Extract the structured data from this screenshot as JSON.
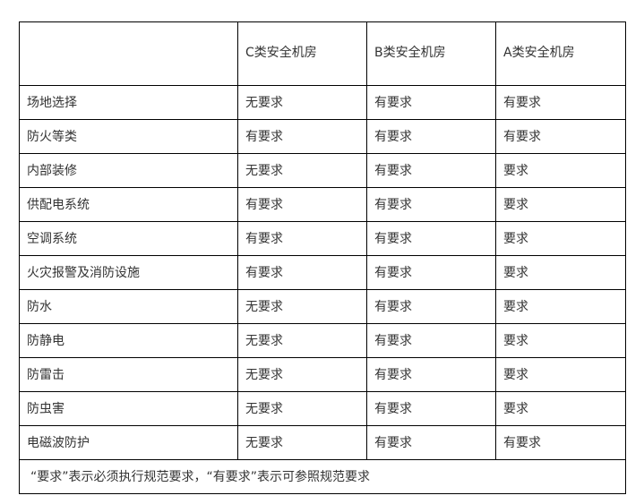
{
  "header": [
    "",
    "C类安全机房",
    "B类安全机房",
    "A类安全机房"
  ],
  "rows": [
    [
      "场地选择",
      "无要求",
      "有要求",
      "有要求"
    ],
    [
      "防火等类",
      "有要求",
      "有要求",
      "有要求"
    ],
    [
      "内部装修",
      "无要求",
      "有要求",
      "要求"
    ],
    [
      "供配电系统",
      "有要求",
      "有要求",
      "要求"
    ],
    [
      "空调系统",
      "有要求",
      "有要求",
      "要求"
    ],
    [
      "火灾报警及消防设施",
      "有要求",
      "有要求",
      "要求"
    ],
    [
      "防水",
      "无要求",
      "有要求",
      "要求"
    ],
    [
      "防静电",
      "无要求",
      "有要求",
      "要求"
    ],
    [
      "防雷击",
      "无要求",
      "有要求",
      "要求"
    ],
    [
      "防虫害",
      "无要求",
      "有要求",
      "要求"
    ],
    [
      "电磁波防护",
      "无要求",
      "有要求",
      "有要求"
    ]
  ],
  "footnote": "“要求”表示必须执行规范要求，“有要求”表示可参照规范要求"
}
